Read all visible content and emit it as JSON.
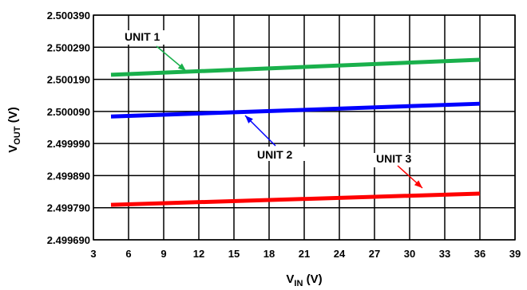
{
  "chart_data": {
    "type": "line",
    "xlabel_main": "V",
    "xlabel_sub": "IN",
    "xlabel_unit": " (V)",
    "ylabel_main": "V",
    "ylabel_sub": "OUT",
    "ylabel_unit": " (V)",
    "xlim": [
      3,
      39
    ],
    "ylim": [
      2.49969,
      2.50039
    ],
    "x_ticks": [
      "3",
      "6",
      "9",
      "12",
      "15",
      "18",
      "21",
      "24",
      "27",
      "30",
      "33",
      "36",
      "39"
    ],
    "y_ticks": [
      "2.499690",
      "2.499790",
      "2.499890",
      "2.499990",
      "2.500090",
      "2.500190",
      "2.500290",
      "2.500390"
    ],
    "grid": true,
    "series": [
      {
        "name": "UNIT 1",
        "color": "#19b04b",
        "x": [
          4.5,
          36
        ],
        "y": [
          2.500204,
          2.500251
        ]
      },
      {
        "name": "UNIT 2",
        "color": "#0000ff",
        "x": [
          4.5,
          36
        ],
        "y": [
          2.500074,
          2.500114
        ]
      },
      {
        "name": "UNIT 3",
        "color": "#ff0000",
        "x": [
          4.5,
          36
        ],
        "y": [
          2.499799,
          2.499834
        ]
      }
    ],
    "annotations": [
      {
        "text": "UNIT 1",
        "color": "#19b04b"
      },
      {
        "text": "UNIT 2",
        "color": "#0000ff"
      },
      {
        "text": "UNIT 3",
        "color": "#ff0000"
      }
    ]
  }
}
